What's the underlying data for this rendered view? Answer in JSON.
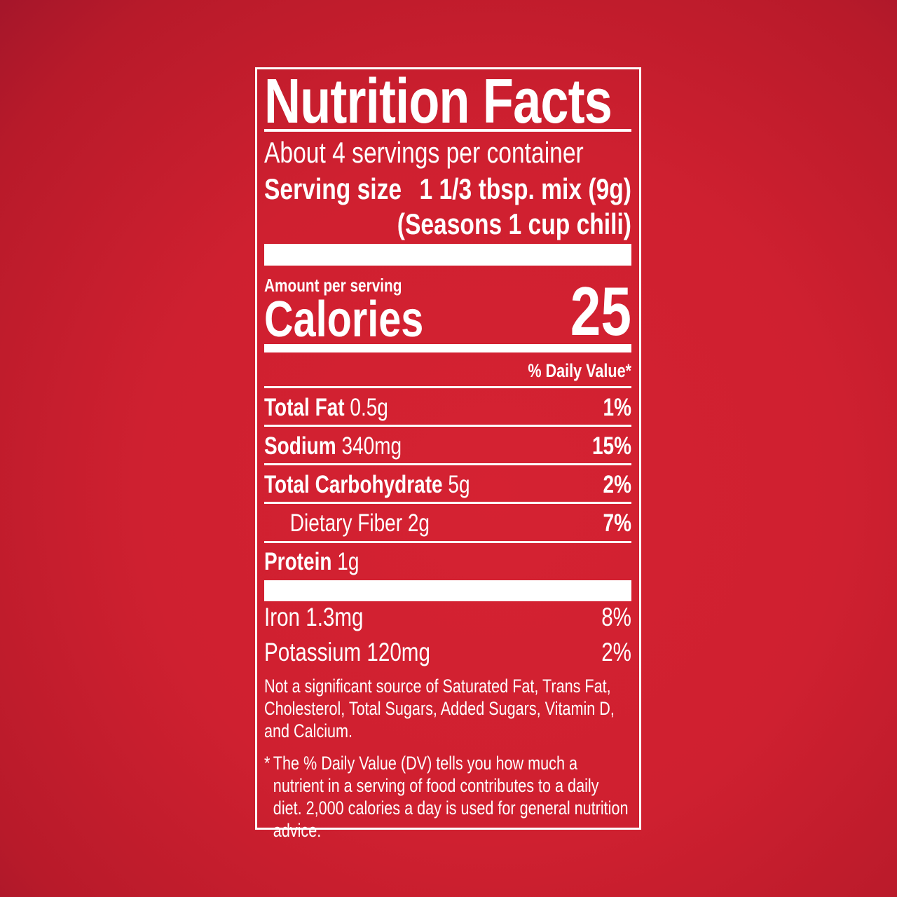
{
  "title": "Nutrition Facts",
  "servings_per_container": "About 4 servings per container",
  "serving_size": {
    "label": "Serving size",
    "value": "1 1/3 tbsp. mix (9g)",
    "note": "(Seasons 1 cup chili)"
  },
  "amount_per_serving": "Amount per serving",
  "calories": {
    "label": "Calories",
    "value": "25"
  },
  "dv_header": "% Daily Value*",
  "nutrients": [
    {
      "name": "Total Fat",
      "amount": "0.5g",
      "dv": "1%"
    },
    {
      "name": "Sodium",
      "amount": "340mg",
      "dv": "15%"
    },
    {
      "name": "Total Carbohydrate",
      "amount": "5g",
      "dv": "2%"
    },
    {
      "name": "Dietary Fiber",
      "amount": "2g",
      "dv": "7%"
    },
    {
      "name": "Protein",
      "amount": "1g",
      "dv": ""
    }
  ],
  "minerals": [
    {
      "name": "Iron",
      "amount": "1.3mg",
      "dv": "8%"
    },
    {
      "name": "Potassium",
      "amount": "120mg",
      "dv": "2%"
    }
  ],
  "not_significant": "Not a significant source of Saturated Fat, Trans Fat, Cholesterol, Total Sugars, Added Sugars, Vitamin D, and Calcium.",
  "footnote_star": "*",
  "footnote": "The % Daily Value (DV) tells you how much a nutrient in a serving of food contributes to a daily diet. 2,000 calories a day is used for general nutrition advice.",
  "colors": {
    "background": "#cf2030",
    "text": "#ffffff"
  }
}
